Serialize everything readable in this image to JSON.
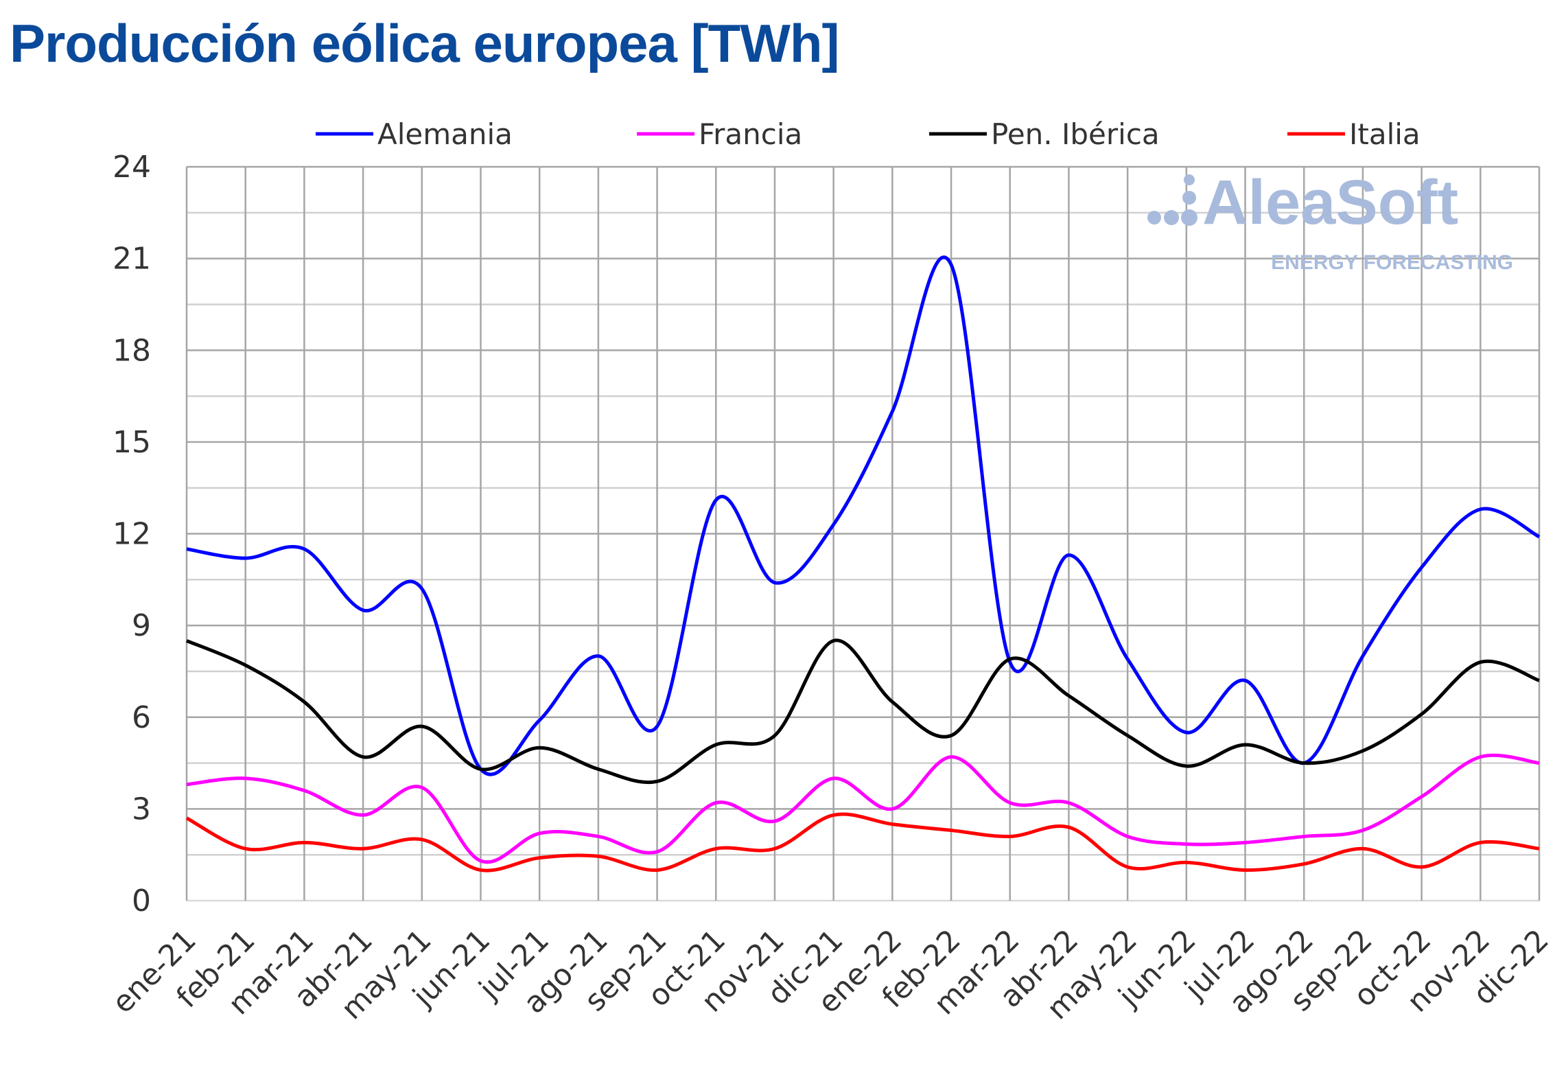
{
  "title": "Producción eólica europea [TWh]",
  "watermark": {
    "brand": "AleaSoft",
    "tagline": "ENERGY FORECASTING",
    "color": "#a9bbdc"
  },
  "chart_data": {
    "type": "line",
    "title": "Producción eólica europea [TWh]",
    "xlabel": "",
    "ylabel": "",
    "ylim": [
      0,
      24
    ],
    "yticks": [
      0,
      3,
      6,
      9,
      12,
      15,
      18,
      21,
      24
    ],
    "grid": true,
    "legend_placement": "top",
    "smooth": true,
    "categories": [
      "ene-21",
      "feb-21",
      "mar-21",
      "abr-21",
      "may-21",
      "jun-21",
      "jul-21",
      "ago-21",
      "sep-21",
      "oct-21",
      "nov-21",
      "dic-21",
      "ene-22",
      "feb-22",
      "mar-22",
      "abr-22",
      "may-22",
      "jun-22",
      "jul-22",
      "ago-22",
      "sep-22",
      "oct-22",
      "nov-22",
      "dic-22"
    ],
    "series": [
      {
        "name": "Alemania",
        "color": "#0000ff",
        "values": [
          11.5,
          11.2,
          11.5,
          9.5,
          10.2,
          4.3,
          5.9,
          8.0,
          5.7,
          13.1,
          10.4,
          12.3,
          16.0,
          20.8,
          7.8,
          11.3,
          7.9,
          5.5,
          7.2,
          4.5,
          8.0,
          10.9,
          12.8,
          11.9
        ]
      },
      {
        "name": "Francia",
        "color": "#ff00ff",
        "values": [
          3.8,
          4.0,
          3.6,
          2.8,
          3.7,
          1.3,
          2.2,
          2.1,
          1.6,
          3.2,
          2.6,
          4.0,
          3.0,
          4.7,
          3.2,
          3.2,
          2.1,
          1.85,
          1.9,
          2.1,
          2.3,
          3.4,
          4.7,
          4.5
        ]
      },
      {
        "name": "Pen. Ibérica",
        "color": "#000000",
        "values": [
          8.5,
          7.7,
          6.5,
          4.7,
          5.7,
          4.3,
          5.0,
          4.3,
          3.9,
          5.1,
          5.4,
          8.5,
          6.5,
          5.4,
          7.9,
          6.7,
          5.4,
          4.4,
          5.1,
          4.5,
          4.9,
          6.1,
          7.8,
          7.2
        ]
      },
      {
        "name": "Italia",
        "color": "#ff0000",
        "values": [
          2.7,
          1.7,
          1.9,
          1.7,
          2.0,
          1.0,
          1.4,
          1.45,
          1.0,
          1.7,
          1.7,
          2.8,
          2.5,
          2.3,
          2.1,
          2.4,
          1.1,
          1.25,
          1.0,
          1.2,
          1.7,
          1.1,
          1.9,
          1.7
        ]
      }
    ]
  }
}
